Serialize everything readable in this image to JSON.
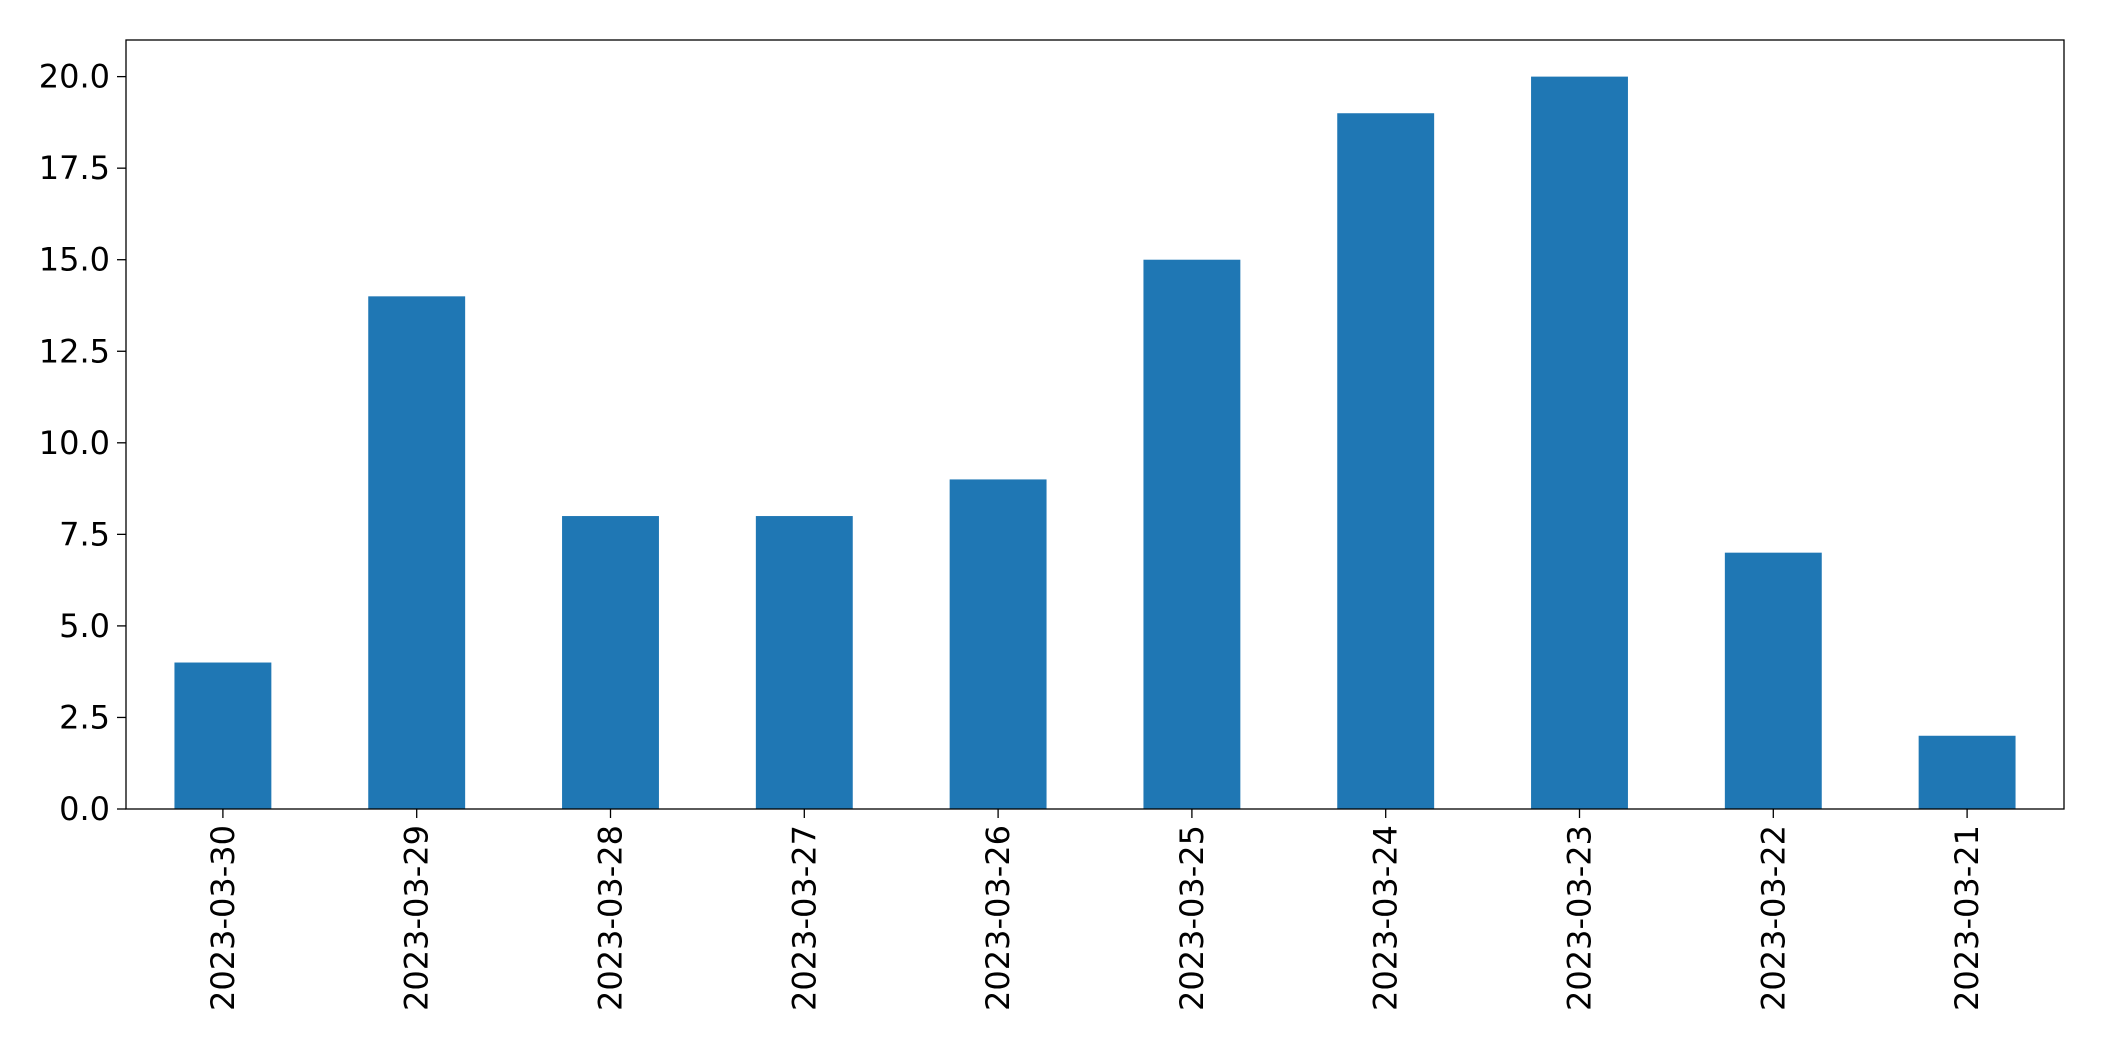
{
  "chart_data": {
    "type": "bar",
    "categories": [
      "2023-03-30",
      "2023-03-29",
      "2023-03-28",
      "2023-03-27",
      "2023-03-26",
      "2023-03-25",
      "2023-03-24",
      "2023-03-23",
      "2023-03-22",
      "2023-03-21"
    ],
    "values": [
      4,
      14,
      8,
      8,
      9,
      15,
      19,
      20,
      7,
      2
    ],
    "color": "#1f77b4",
    "ylim": [
      0,
      21
    ],
    "yticks": [
      {
        "value": 0,
        "label": "0.0"
      },
      {
        "value": 2.5,
        "label": "2.5"
      },
      {
        "value": 5,
        "label": "5.0"
      },
      {
        "value": 7.5,
        "label": "7.5"
      },
      {
        "value": 10,
        "label": "10.0"
      },
      {
        "value": 12.5,
        "label": "12.5"
      },
      {
        "value": 15,
        "label": "15.0"
      },
      {
        "value": 17.5,
        "label": "17.5"
      },
      {
        "value": 20,
        "label": "20.0"
      }
    ],
    "grid": false
  }
}
